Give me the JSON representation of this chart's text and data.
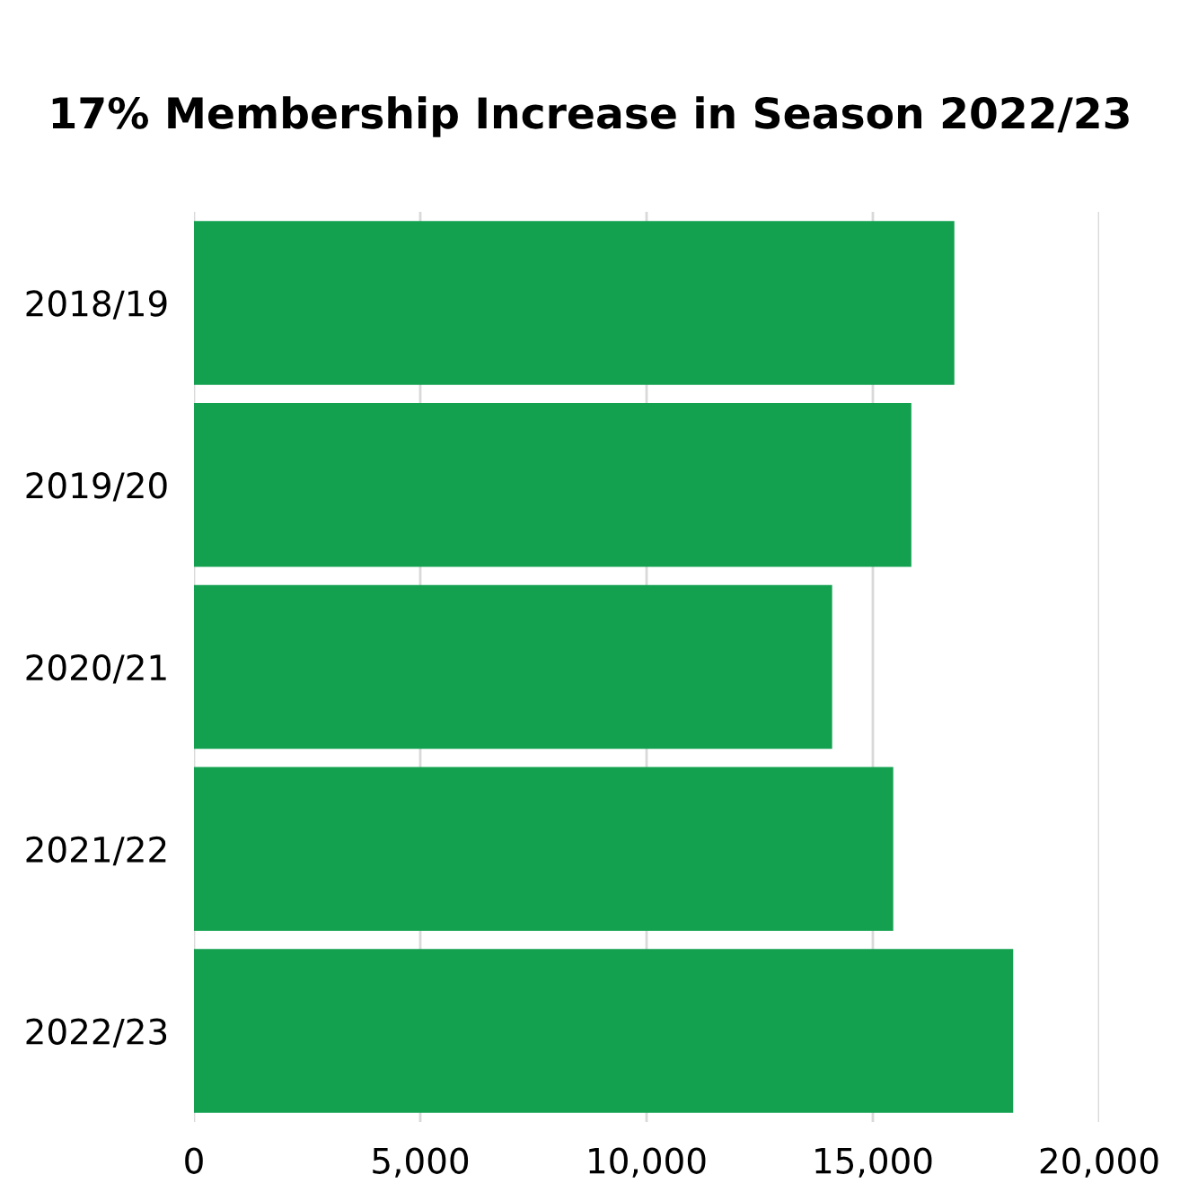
{
  "chart_data": {
    "type": "bar",
    "orientation": "horizontal",
    "title": "17% Membership Increase in Season 2022/23",
    "categories": [
      "2018/19",
      "2019/20",
      "2020/21",
      "2021/22",
      "2022/23"
    ],
    "values": [
      16800,
      15850,
      14100,
      15450,
      18100
    ],
    "color": "#13a150",
    "xlim": [
      0,
      20000
    ],
    "xticks": [
      0,
      {
        "value": 5000,
        "label": "5,000"
      },
      {
        "value": 10000,
        "label": "10,000"
      },
      {
        "value": 15000,
        "label": "15,000"
      },
      {
        "value": 20000,
        "label": "20,000"
      }
    ],
    "grid": "x",
    "legend": false
  }
}
